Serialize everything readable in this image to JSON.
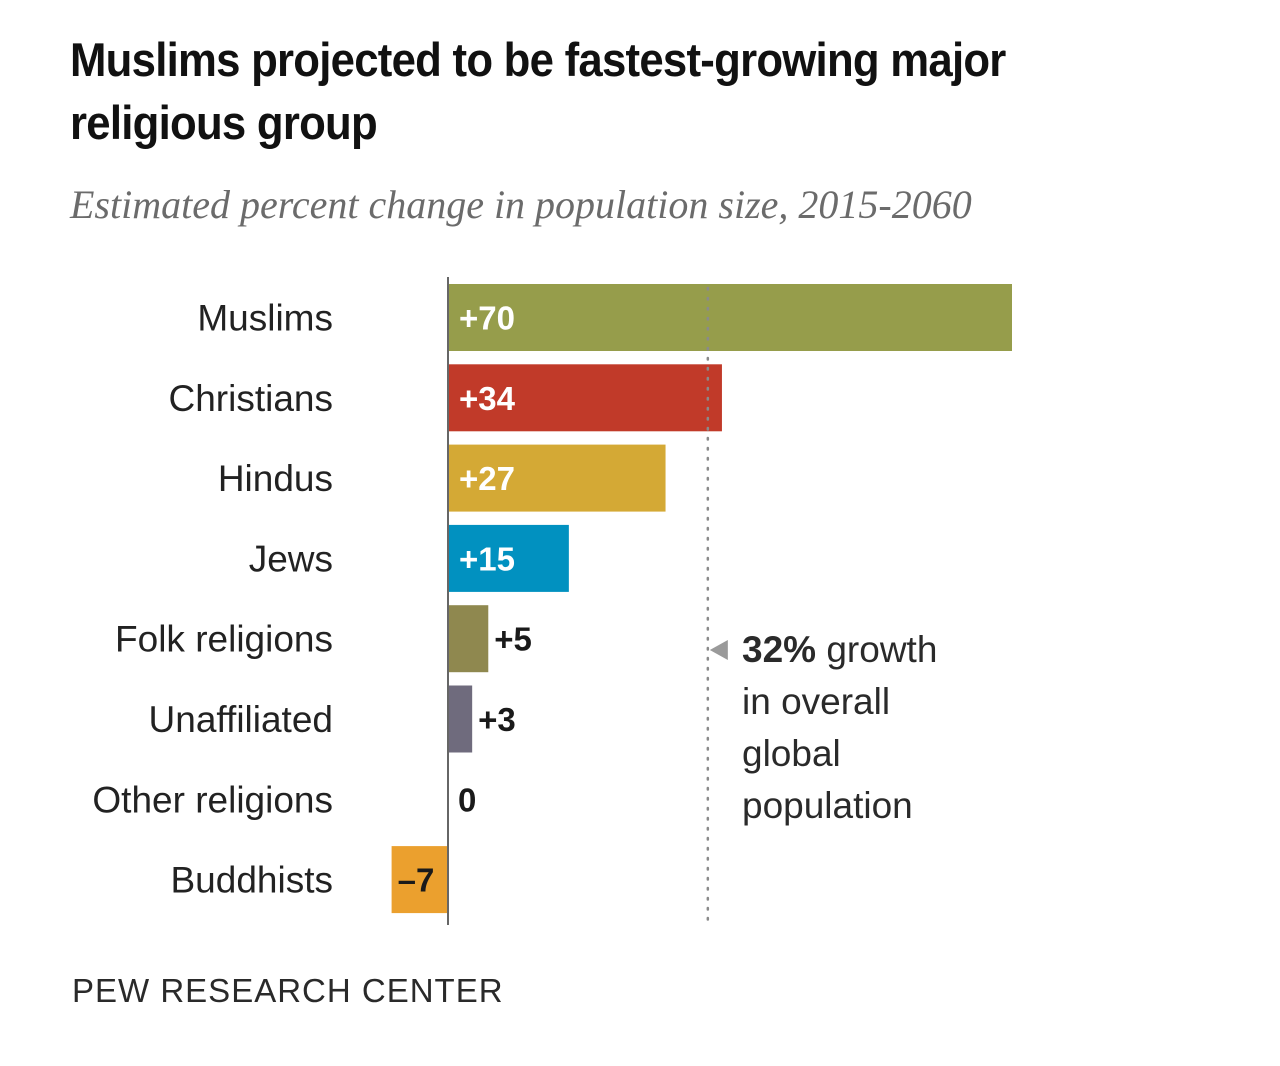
{
  "chart_data": {
    "type": "bar",
    "orientation": "horizontal",
    "title": "Muslims projected to be fastest-growing major religious group",
    "subtitle": "Estimated percent change in population size, 2015-2060",
    "xlabel": "",
    "ylabel": "",
    "xlim": [
      -7,
      70
    ],
    "grid": false,
    "categories": [
      "Muslims",
      "Christians",
      "Hindus",
      "Jews",
      "Folk religions",
      "Unaffiliated",
      "Other religions",
      "Buddhists"
    ],
    "values": [
      70,
      34,
      27,
      15,
      5,
      3,
      0,
      -7
    ],
    "value_labels": [
      "+70",
      "+34",
      "+27",
      "+15",
      "+5",
      "+3",
      "0",
      "–7"
    ],
    "colors": [
      "#969d4b",
      "#c13a29",
      "#d4a935",
      "#0191c0",
      "#8f884f",
      "#6f6b7d",
      "#888888",
      "#eba02e"
    ],
    "reference_line": {
      "value": 32,
      "style": "dotted",
      "annotation_bold": "32%",
      "annotation_lines": [
        " growth",
        "in overall",
        "global",
        "population"
      ]
    }
  },
  "source": "PEW RESEARCH CENTER"
}
